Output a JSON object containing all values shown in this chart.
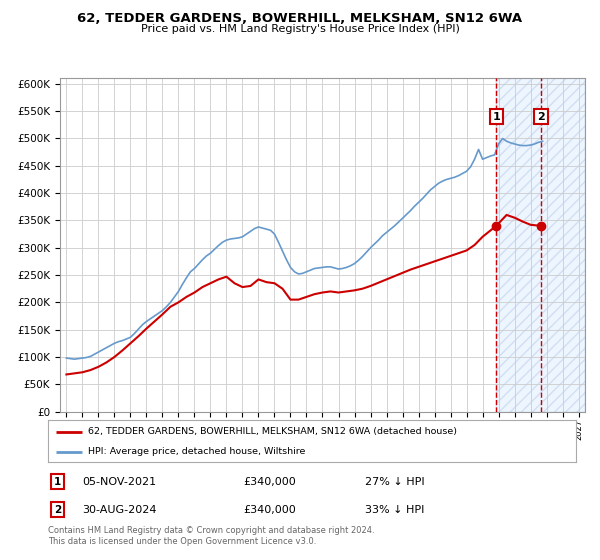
{
  "title": "62, TEDDER GARDENS, BOWERHILL, MELKSHAM, SN12 6WA",
  "subtitle": "Price paid vs. HM Land Registry's House Price Index (HPI)",
  "legend_line1": "62, TEDDER GARDENS, BOWERHILL, MELKSHAM, SN12 6WA (detached house)",
  "legend_line2": "HPI: Average price, detached house, Wiltshire",
  "annotation1": [
    "1",
    "05-NOV-2021",
    "£340,000",
    "27% ↓ HPI"
  ],
  "annotation2": [
    "2",
    "30-AUG-2024",
    "£340,000",
    "33% ↓ HPI"
  ],
  "footer": "Contains HM Land Registry data © Crown copyright and database right 2024.\nThis data is licensed under the Open Government Licence v3.0.",
  "marker1_year": 2021.85,
  "marker2_year": 2024.66,
  "ylim": [
    0,
    610000
  ],
  "xlim": [
    1994.6,
    2027.4
  ],
  "hpi_color": "#6699cc",
  "price_color": "#cc0000",
  "shade_color": "#ddeeff",
  "grid_color": "#cccccc",
  "bg_color": "#ffffff",
  "hpi_data_x": [
    1995.0,
    1995.25,
    1995.5,
    1995.75,
    1996.0,
    1996.25,
    1996.5,
    1996.75,
    1997.0,
    1997.25,
    1997.5,
    1997.75,
    1998.0,
    1998.25,
    1998.5,
    1998.75,
    1999.0,
    1999.25,
    1999.5,
    1999.75,
    2000.0,
    2000.25,
    2000.5,
    2000.75,
    2001.0,
    2001.25,
    2001.5,
    2001.75,
    2002.0,
    2002.25,
    2002.5,
    2002.75,
    2003.0,
    2003.25,
    2003.5,
    2003.75,
    2004.0,
    2004.25,
    2004.5,
    2004.75,
    2005.0,
    2005.25,
    2005.5,
    2005.75,
    2006.0,
    2006.25,
    2006.5,
    2006.75,
    2007.0,
    2007.25,
    2007.5,
    2007.75,
    2008.0,
    2008.25,
    2008.5,
    2008.75,
    2009.0,
    2009.25,
    2009.5,
    2009.75,
    2010.0,
    2010.25,
    2010.5,
    2010.75,
    2011.0,
    2011.25,
    2011.5,
    2011.75,
    2012.0,
    2012.25,
    2012.5,
    2012.75,
    2013.0,
    2013.25,
    2013.5,
    2013.75,
    2014.0,
    2014.25,
    2014.5,
    2014.75,
    2015.0,
    2015.25,
    2015.5,
    2015.75,
    2016.0,
    2016.25,
    2016.5,
    2016.75,
    2017.0,
    2017.25,
    2017.5,
    2017.75,
    2018.0,
    2018.25,
    2018.5,
    2018.75,
    2019.0,
    2019.25,
    2019.5,
    2019.75,
    2020.0,
    2020.25,
    2020.5,
    2020.75,
    2021.0,
    2021.25,
    2021.5,
    2021.75,
    2022.0,
    2022.25,
    2022.5,
    2022.75,
    2023.0,
    2023.25,
    2023.5,
    2023.75,
    2024.0,
    2024.25,
    2024.5,
    2024.75
  ],
  "hpi_data_y": [
    98000,
    97000,
    96000,
    97000,
    98000,
    99000,
    101000,
    105000,
    109000,
    113000,
    117000,
    121000,
    125000,
    128000,
    130000,
    133000,
    136000,
    143000,
    151000,
    159000,
    165000,
    170000,
    175000,
    180000,
    185000,
    192000,
    200000,
    210000,
    220000,
    233000,
    245000,
    256000,
    262000,
    270000,
    278000,
    285000,
    290000,
    297000,
    304000,
    310000,
    314000,
    316000,
    317000,
    318000,
    320000,
    325000,
    330000,
    335000,
    338000,
    336000,
    334000,
    332000,
    325000,
    310000,
    294000,
    278000,
    264000,
    256000,
    252000,
    253000,
    256000,
    259000,
    262000,
    263000,
    264000,
    265000,
    265000,
    263000,
    261000,
    262000,
    264000,
    267000,
    271000,
    277000,
    284000,
    292000,
    300000,
    307000,
    314000,
    322000,
    328000,
    334000,
    340000,
    347000,
    354000,
    361000,
    368000,
    376000,
    383000,
    390000,
    398000,
    406000,
    412000,
    418000,
    422000,
    425000,
    427000,
    429000,
    432000,
    436000,
    440000,
    448000,
    462000,
    480000,
    462000,
    465000,
    468000,
    470000,
    490000,
    500000,
    495000,
    492000,
    490000,
    488000,
    487000,
    487000,
    488000,
    490000,
    493000,
    495000
  ],
  "price_data_x": [
    1995.0,
    1995.5,
    1996.0,
    1996.5,
    1997.0,
    1997.5,
    1998.0,
    1998.5,
    1999.0,
    1999.5,
    2000.0,
    2000.5,
    2001.0,
    2001.5,
    2002.0,
    2002.5,
    2003.0,
    2003.5,
    2004.0,
    2004.5,
    2005.0,
    2005.5,
    2006.0,
    2006.5,
    2007.0,
    2007.5,
    2008.0,
    2008.5,
    2009.0,
    2009.5,
    2010.0,
    2010.5,
    2011.0,
    2011.5,
    2012.0,
    2012.5,
    2013.0,
    2013.5,
    2014.0,
    2014.5,
    2015.0,
    2015.5,
    2016.0,
    2016.5,
    2017.0,
    2017.5,
    2018.0,
    2018.5,
    2019.0,
    2019.5,
    2020.0,
    2020.5,
    2021.0,
    2021.85,
    2022.5,
    2023.0,
    2023.5,
    2024.0,
    2024.66
  ],
  "price_data_y": [
    68000,
    70000,
    72000,
    76000,
    82000,
    90000,
    100000,
    112000,
    125000,
    138000,
    152000,
    165000,
    178000,
    192000,
    200000,
    210000,
    218000,
    228000,
    235000,
    242000,
    247000,
    235000,
    228000,
    230000,
    242000,
    237000,
    235000,
    225000,
    205000,
    205000,
    210000,
    215000,
    218000,
    220000,
    218000,
    220000,
    222000,
    225000,
    230000,
    236000,
    242000,
    248000,
    254000,
    260000,
    265000,
    270000,
    275000,
    280000,
    285000,
    290000,
    295000,
    305000,
    320000,
    340000,
    360000,
    355000,
    348000,
    342000,
    340000
  ]
}
